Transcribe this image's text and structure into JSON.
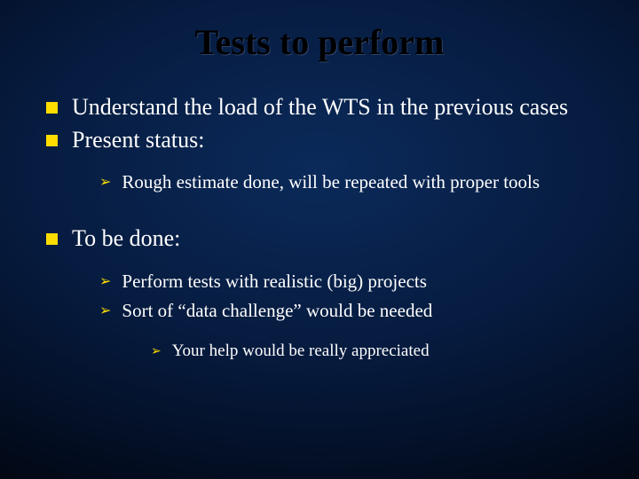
{
  "slide": {
    "title": "Tests to perform",
    "colors": {
      "title_color": "#000000",
      "text_color": "#ffffff",
      "bullet_color": "#ffdd00",
      "bg_center": "#0b2a5a",
      "bg_mid": "#061a3d",
      "bg_edge": "#000000"
    },
    "fonts": {
      "family": "Times New Roman",
      "title_size_pt": 40,
      "lvl1_size_pt": 26,
      "lvl2_size_pt": 21,
      "lvl3_size_pt": 19
    },
    "items": {
      "understand": "Understand the load of the WTS in the previous cases",
      "present_status": "Present status:",
      "rough_estimate": "Rough estimate done, will be repeated with proper tools",
      "to_be_done": "To be done:",
      "perform_tests": "Perform tests with realistic (big) projects",
      "data_challenge": "Sort of  “data challenge” would be needed",
      "your_help": "Your help would be really appreciated"
    }
  }
}
